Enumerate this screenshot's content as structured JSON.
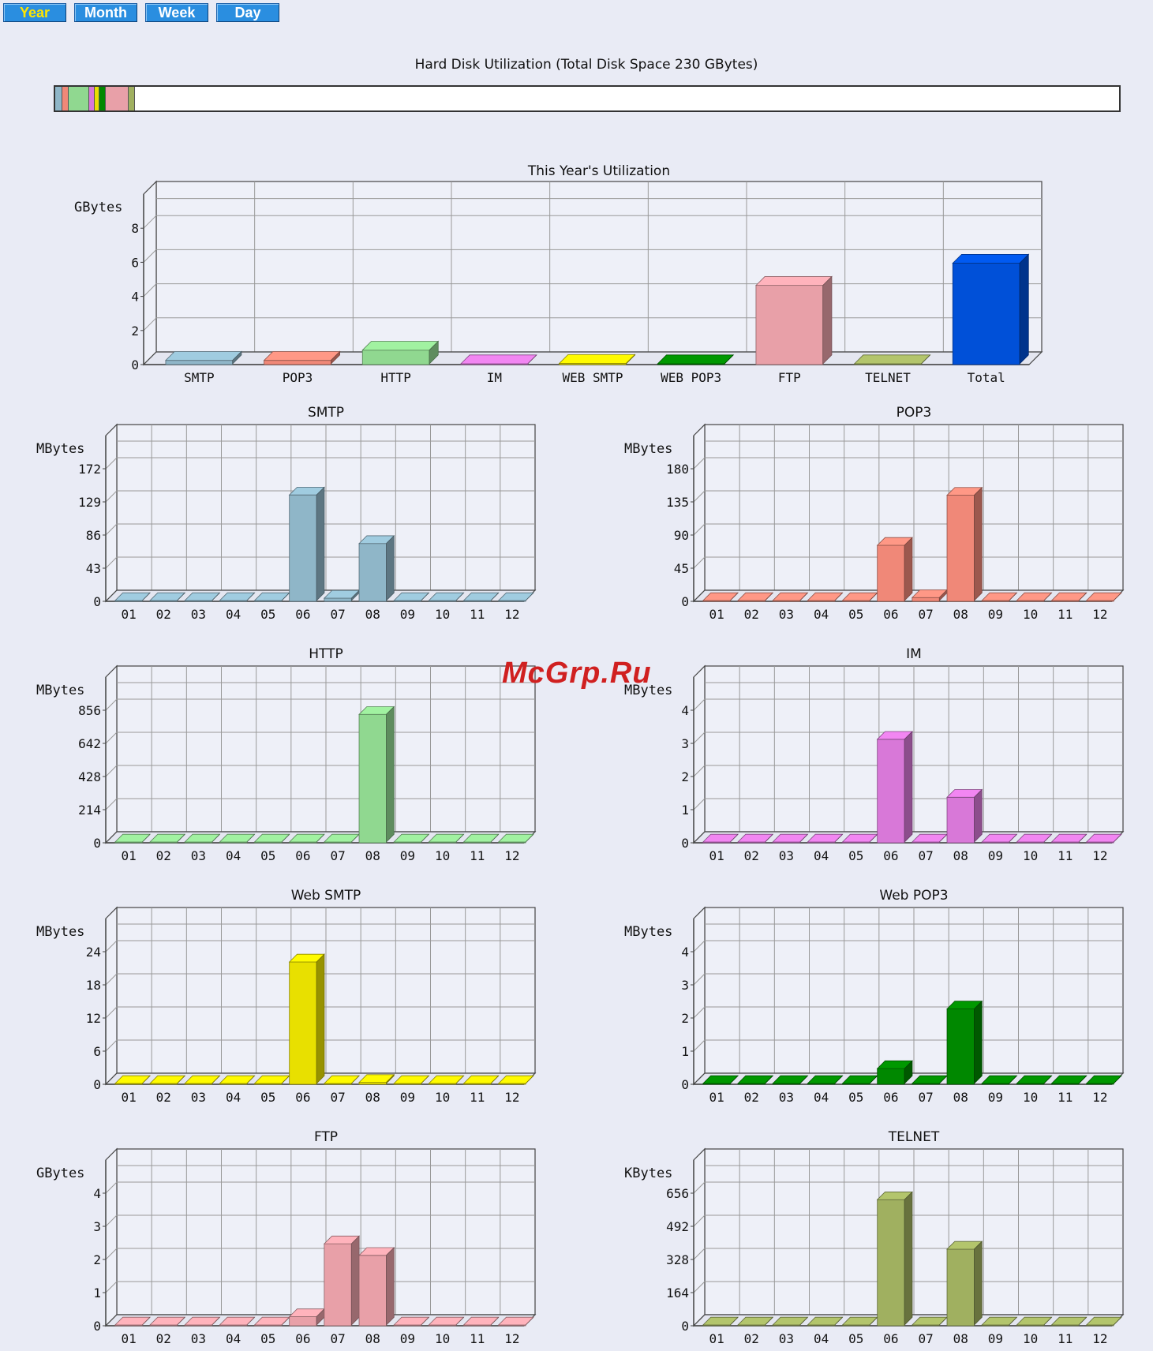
{
  "tabs": [
    {
      "label": "Year",
      "active": true
    },
    {
      "label": "Month",
      "active": false
    },
    {
      "label": "Week",
      "active": false
    },
    {
      "label": "Day",
      "active": false
    }
  ],
  "disk": {
    "title": "Hard Disk Utilization (Total Disk Space 230 GBytes)",
    "segments": [
      {
        "color": "#8fb6c8",
        "percent": 0.6
      },
      {
        "color": "#f08878",
        "percent": 0.5
      },
      {
        "color": "#90d890",
        "percent": 1.9
      },
      {
        "color": "#d878d8",
        "percent": 0.4
      },
      {
        "color": "#e8e000",
        "percent": 0.4
      },
      {
        "color": "#008800",
        "percent": 0.5
      },
      {
        "color": "#e8a0a8",
        "percent": 2.1
      },
      {
        "color": "#a0b060",
        "percent": 0.5
      }
    ]
  },
  "watermark": "McGrp.Ru",
  "chart_data": [
    {
      "id": "year",
      "type": "bar",
      "title": "This Year's Utilization",
      "ylabel": "GBytes",
      "yticks": [
        "0",
        "2",
        "4",
        "6",
        "8"
      ],
      "ylim": [
        0,
        10
      ],
      "categories": [
        "SMTP",
        "POP3",
        "HTTP",
        "IM",
        "WEB SMTP",
        "WEB POP3",
        "FTP",
        "TELNET",
        "Total"
      ],
      "values": [
        0.2,
        0.2,
        0.8,
        0.0,
        0.02,
        0.0,
        4.6,
        0.0,
        5.9
      ],
      "colors": [
        "#8fb6c8",
        "#f08878",
        "#90d890",
        "#d878d8",
        "#e8e000",
        "#008800",
        "#e8a0a8",
        "#a0b060",
        "#0050d8"
      ]
    },
    {
      "id": "smtp",
      "type": "bar",
      "title": "SMTP",
      "ylabel": "MBytes",
      "yticks": [
        "0",
        "43",
        "86",
        "129",
        "172"
      ],
      "ylim": [
        0,
        215
      ],
      "categories": [
        "01",
        "02",
        "03",
        "04",
        "05",
        "06",
        "07",
        "08",
        "09",
        "10",
        "11",
        "12"
      ],
      "values": [
        0,
        0,
        0,
        0,
        0,
        137,
        3,
        74,
        0,
        0,
        0,
        0
      ],
      "color": "#8fb6c8"
    },
    {
      "id": "pop3",
      "type": "bar",
      "title": "POP3",
      "ylabel": "MBytes",
      "yticks": [
        "0",
        "45",
        "90",
        "135",
        "180"
      ],
      "ylim": [
        0,
        225
      ],
      "categories": [
        "01",
        "02",
        "03",
        "04",
        "05",
        "06",
        "07",
        "08",
        "09",
        "10",
        "11",
        "12"
      ],
      "values": [
        0,
        0,
        0,
        0,
        0,
        75,
        4,
        143,
        0,
        0,
        0,
        0
      ],
      "color": "#f08878"
    },
    {
      "id": "http",
      "type": "bar",
      "title": "HTTP",
      "ylabel": "MBytes",
      "yticks": [
        "0",
        "214",
        "428",
        "642",
        "856"
      ],
      "ylim": [
        0,
        1070
      ],
      "categories": [
        "01",
        "02",
        "03",
        "04",
        "05",
        "06",
        "07",
        "08",
        "09",
        "10",
        "11",
        "12"
      ],
      "values": [
        0,
        0,
        0,
        0,
        0,
        0,
        0,
        824,
        0,
        0,
        0,
        0
      ],
      "color": "#90d890"
    },
    {
      "id": "im",
      "type": "bar",
      "title": "IM",
      "ylabel": "MBytes",
      "yticks": [
        "0",
        "1",
        "2",
        "3",
        "4"
      ],
      "ylim": [
        0,
        5
      ],
      "categories": [
        "01",
        "02",
        "03",
        "04",
        "05",
        "06",
        "07",
        "08",
        "09",
        "10",
        "11",
        "12"
      ],
      "values": [
        0,
        0,
        0,
        0,
        0,
        3.1,
        0,
        1.35,
        0,
        0,
        0,
        0
      ],
      "color": "#d878d8"
    },
    {
      "id": "websmtp",
      "type": "bar",
      "title": "Web SMTP",
      "ylabel": "MBytes",
      "yticks": [
        "0",
        "6",
        "12",
        "18",
        "24"
      ],
      "ylim": [
        0,
        30
      ],
      "categories": [
        "01",
        "02",
        "03",
        "04",
        "05",
        "06",
        "07",
        "08",
        "09",
        "10",
        "11",
        "12"
      ],
      "values": [
        0,
        0,
        0,
        0,
        0,
        22,
        0,
        0.2,
        0,
        0,
        0,
        0
      ],
      "color": "#e8e000"
    },
    {
      "id": "webpop3",
      "type": "bar",
      "title": "Web POP3",
      "ylabel": "MBytes",
      "yticks": [
        "0",
        "1",
        "2",
        "3",
        "4"
      ],
      "ylim": [
        0,
        5
      ],
      "categories": [
        "01",
        "02",
        "03",
        "04",
        "05",
        "06",
        "07",
        "08",
        "09",
        "10",
        "11",
        "12"
      ],
      "values": [
        0,
        0,
        0,
        0,
        0,
        0.45,
        0,
        2.25,
        0,
        0,
        0,
        0
      ],
      "color": "#008800"
    },
    {
      "id": "ftp",
      "type": "bar",
      "title": "FTP",
      "ylabel": "GBytes",
      "yticks": [
        "0",
        "1",
        "2",
        "3",
        "4"
      ],
      "ylim": [
        0,
        5
      ],
      "categories": [
        "01",
        "02",
        "03",
        "04",
        "05",
        "06",
        "07",
        "08",
        "09",
        "10",
        "11",
        "12"
      ],
      "values": [
        0,
        0,
        0,
        0,
        0,
        0.25,
        2.45,
        2.1,
        0,
        0,
        0,
        0
      ],
      "color": "#e8a0a8"
    },
    {
      "id": "telnet",
      "type": "bar",
      "title": "TELNET",
      "ylabel": "KBytes",
      "yticks": [
        "0",
        "164",
        "328",
        "492",
        "656"
      ],
      "ylim": [
        0,
        820
      ],
      "categories": [
        "01",
        "02",
        "03",
        "04",
        "05",
        "06",
        "07",
        "08",
        "09",
        "10",
        "11",
        "12"
      ],
      "values": [
        0,
        0,
        0,
        0,
        0,
        620,
        0,
        375,
        0,
        0,
        0,
        0
      ],
      "color": "#a0b060"
    }
  ]
}
